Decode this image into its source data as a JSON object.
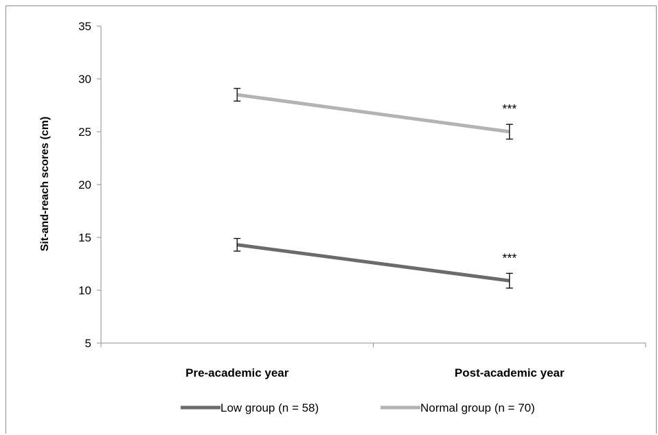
{
  "chart_data": {
    "type": "line",
    "title": "",
    "xlabel": "",
    "ylabel": "Sit-and-reach scores (cm)",
    "categories": [
      "Pre-academic year",
      "Post-academic year"
    ],
    "ylim": [
      5,
      35
    ],
    "yticks": [
      5,
      10,
      15,
      20,
      25,
      30,
      35
    ],
    "grid": false,
    "legend_position": "bottom",
    "series": [
      {
        "name": "Low group (n = 58)",
        "values": [
          14.3,
          10.9
        ],
        "errors": [
          0.6,
          0.7
        ],
        "color": "#6b6b6b"
      },
      {
        "name": "Normal group (n = 70)",
        "values": [
          28.5,
          25.0
        ],
        "errors": [
          0.6,
          0.7
        ],
        "color": "#b3b3b3"
      }
    ],
    "annotations": [
      {
        "text": "***",
        "category": "Post-academic year",
        "series": "Normal group (n = 70)"
      },
      {
        "text": "***",
        "category": "Post-academic year",
        "series": "Low group (n = 58)"
      }
    ]
  }
}
